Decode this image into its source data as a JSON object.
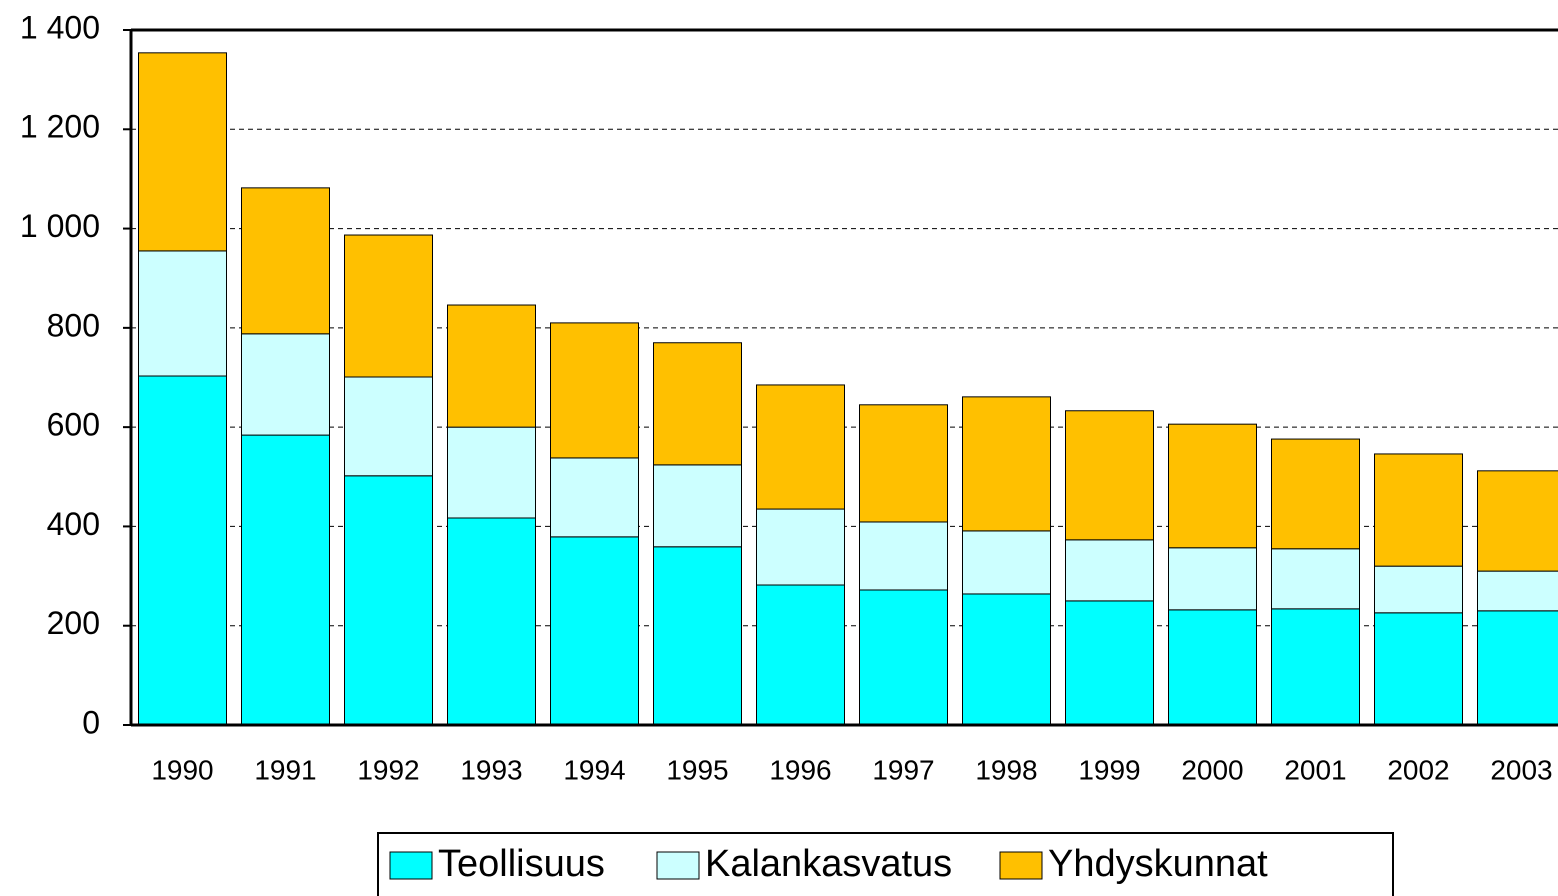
{
  "chart_data": {
    "type": "stacked_bar",
    "categories": [
      "1990",
      "1991",
      "1992",
      "1993",
      "1994",
      "1995",
      "1996",
      "1997",
      "1998",
      "1999",
      "2000",
      "2001",
      "2002",
      "2003"
    ],
    "series": [
      {
        "name": "Teollisuus",
        "color": "#00ffff",
        "values": [
          703,
          584,
          502,
          417,
          379,
          359,
          282,
          272,
          264,
          250,
          232,
          234,
          226,
          230
        ]
      },
      {
        "name": "Kalankasvatus",
        "color": "#ccffff",
        "values": [
          252,
          204,
          199,
          183,
          159,
          165,
          153,
          137,
          127,
          123,
          125,
          121,
          94,
          80
        ]
      },
      {
        "name": "Yhdyskunnat",
        "color": "#ffc000",
        "values": [
          399,
          294,
          286,
          246,
          272,
          246,
          250,
          236,
          270,
          260,
          249,
          221,
          226,
          202
        ]
      }
    ],
    "ylim": [
      0,
      1400
    ],
    "yticks": [
      0,
      200,
      400,
      600,
      800,
      {
        "value": 1000,
        "label": "1 000"
      },
      {
        "value": 1200,
        "label": "1 200"
      },
      {
        "value": 1400,
        "label": "1 400"
      }
    ],
    "grid": true,
    "legend": "bottom"
  }
}
